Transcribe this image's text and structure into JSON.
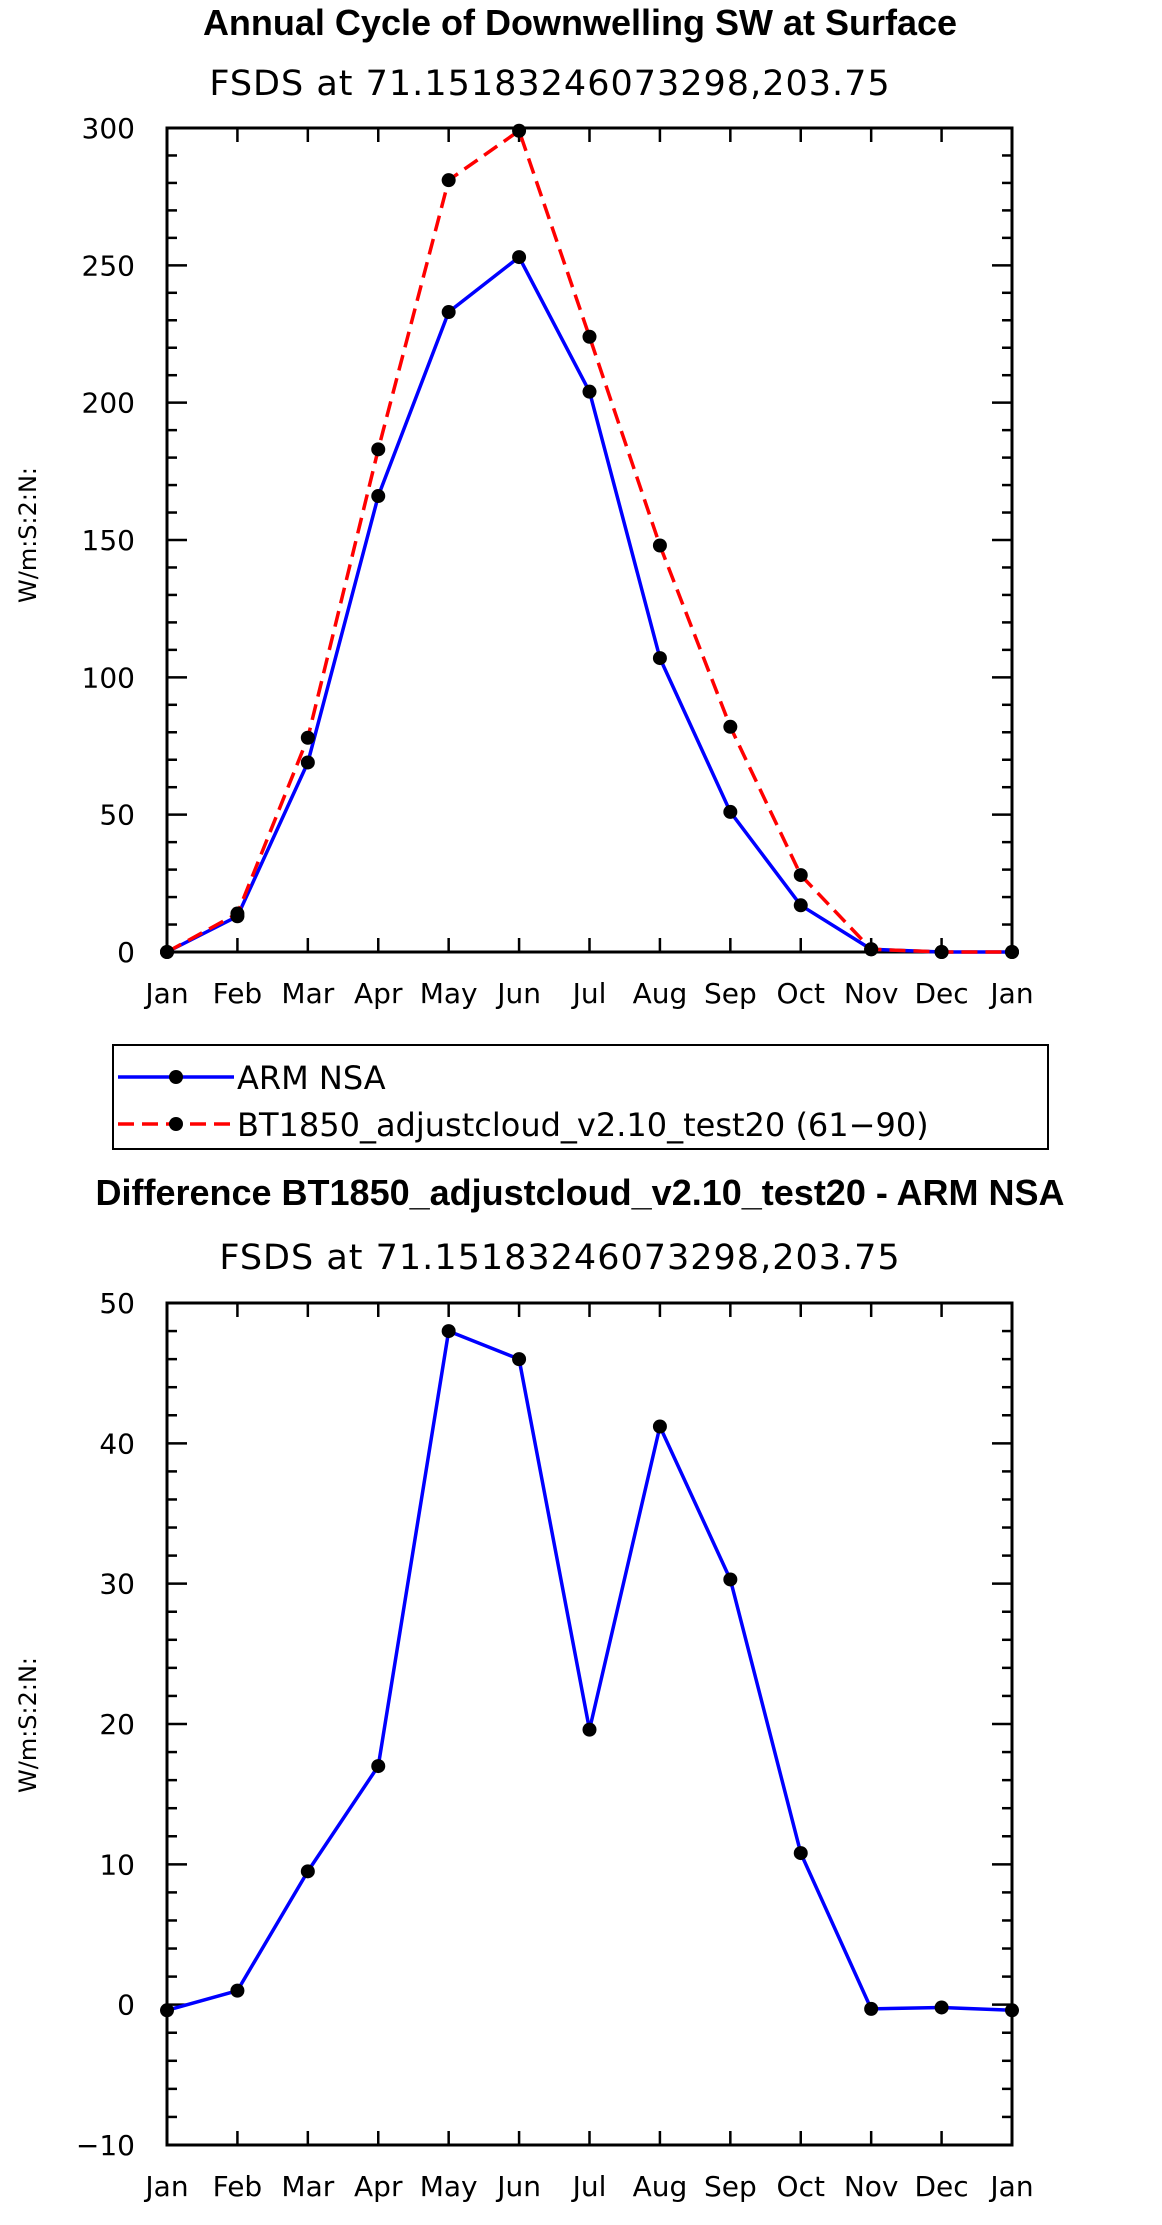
{
  "chart_data": [
    {
      "type": "line",
      "title": "Annual Cycle of Downwelling SW at Surface",
      "subtitle": "FSDS at 71.15183246073298,203.75",
      "ylabel": "W/m:S:2:N:",
      "xlabel": "",
      "categories": [
        "Jan",
        "Feb",
        "Mar",
        "Apr",
        "May",
        "Jun",
        "Jul",
        "Aug",
        "Sep",
        "Oct",
        "Nov",
        "Dec",
        "Jan"
      ],
      "ylim": [
        0,
        300
      ],
      "yticks": [
        0,
        50,
        100,
        150,
        200,
        250,
        300
      ],
      "series": [
        {
          "name": "ARM NSA",
          "color": "#0000ff",
          "dash": "solid",
          "values": [
            0,
            13,
            69,
            166,
            233,
            253,
            204,
            107,
            51,
            17,
            1,
            0,
            0
          ]
        },
        {
          "name": "BT1850_adjustcloud_v2.10_test20 (61−90)",
          "color": "#ff0000",
          "dash": "dashed",
          "values": [
            0,
            14,
            78,
            183,
            281,
            299,
            224,
            148,
            82,
            28,
            1,
            0,
            0
          ]
        }
      ],
      "legend": "below"
    },
    {
      "type": "line",
      "title": "Difference BT1850_adjustcloud_v2.10_test20 - ARM NSA",
      "subtitle": "FSDS at 71.15183246073298,203.75",
      "ylabel": "W/m:S:2:N:",
      "xlabel": "",
      "categories": [
        "Jan",
        "Feb",
        "Mar",
        "Apr",
        "May",
        "Jun",
        "Jul",
        "Aug",
        "Sep",
        "Oct",
        "Nov",
        "Dec",
        "Jan"
      ],
      "ylim": [
        -10,
        50
      ],
      "yticks": [
        -10,
        0,
        10,
        20,
        30,
        40,
        50
      ],
      "ytick_labels": [
        "−10",
        "0",
        "10",
        "20",
        "30",
        "40",
        "50"
      ],
      "series": [
        {
          "name": "Difference",
          "color": "#0000ff",
          "dash": "solid",
          "values": [
            -0.4,
            1,
            9.5,
            17,
            48,
            46,
            19.6,
            41.2,
            30.3,
            10.8,
            -0.3,
            -0.2,
            -0.4
          ]
        }
      ]
    }
  ]
}
